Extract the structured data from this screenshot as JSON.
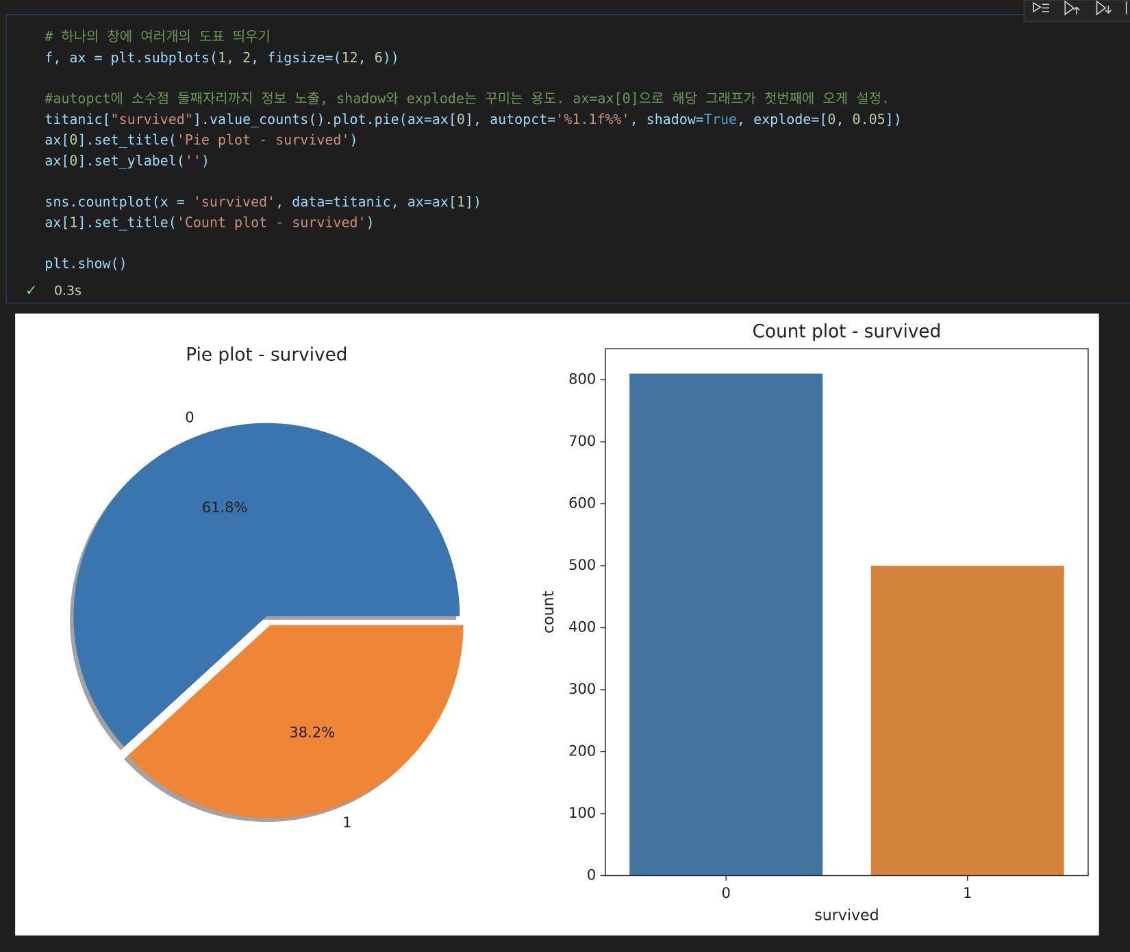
{
  "code": {
    "blocks": [
      [
        "# 하나의 창에 여러개의 도표 띄우기",
        "f, ax = plt.subplots(1, 2, figsize=(12, 6))"
      ],
      [
        "#autopct에 소수점 둘째자리까지 정보 노출, shadow와 explode는 꾸미는 용도. ax=ax[0]으로 해당 그래프가 첫번째에 오게 설정.",
        "titanic[\"survived\"].value_counts().plot.pie(ax=ax[0], autopct='%1.1f%%', shadow=True, explode=[0, 0.05])",
        "ax[0].set_title('Pie plot - survived')",
        "ax[0].set_ylabel('')"
      ],
      [
        "sns.countplot(x = 'survived', data=titanic, ax=ax[1])",
        "ax[1].set_title('Count plot - survived')"
      ],
      [
        "plt.show()"
      ]
    ]
  },
  "status": {
    "mark": "✓",
    "time": "0.3s"
  },
  "chart_data": [
    {
      "type": "pie",
      "title": "Pie plot - survived",
      "categories": [
        "0",
        "1"
      ],
      "values": [
        61.8,
        38.2
      ],
      "value_labels": [
        "61.8%",
        "38.2%"
      ],
      "colors": [
        "#3a75af",
        "#ef8536"
      ],
      "explode": [
        0,
        0.05
      ],
      "shadow": true
    },
    {
      "type": "bar",
      "title": "Count plot - survived",
      "xlabel": "survived",
      "ylabel": "count",
      "categories": [
        "0",
        "1"
      ],
      "values": [
        810,
        500
      ],
      "colors": [
        "#4374a0",
        "#d5843d"
      ],
      "ylim": [
        0,
        850
      ],
      "yticks": [
        0,
        100,
        200,
        300,
        400,
        500,
        600,
        700,
        800
      ]
    }
  ]
}
